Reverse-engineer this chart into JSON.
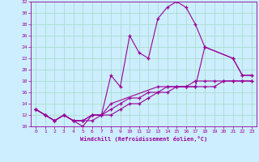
{
  "xlabel": "Windchill (Refroidissement éolien,°C)",
  "bg_color": "#cceeff",
  "line_color": "#990099",
  "grid_color": "#aaddcc",
  "xlim": [
    -0.5,
    23.5
  ],
  "ylim": [
    10,
    32
  ],
  "yticks": [
    10,
    12,
    14,
    16,
    18,
    20,
    22,
    24,
    26,
    28,
    30,
    32
  ],
  "xticks": [
    0,
    1,
    2,
    3,
    4,
    5,
    6,
    7,
    8,
    9,
    10,
    11,
    12,
    13,
    14,
    15,
    16,
    17,
    18,
    19,
    20,
    21,
    22,
    23
  ],
  "series": [
    {
      "x": [
        0,
        1,
        2,
        3,
        4,
        5,
        6,
        7,
        8,
        9,
        10,
        11,
        12,
        13,
        14,
        15,
        16,
        17,
        18,
        21,
        22,
        23
      ],
      "y": [
        13,
        12,
        11,
        12,
        11,
        10,
        12,
        12,
        19,
        17,
        26,
        23,
        22,
        29,
        31,
        32,
        31,
        28,
        24,
        22,
        19,
        19
      ]
    },
    {
      "x": [
        0,
        1,
        2,
        3,
        4,
        5,
        6,
        7,
        8,
        9,
        10,
        11,
        12,
        13,
        14,
        15,
        16,
        17,
        18,
        19,
        20,
        21,
        22,
        23
      ],
      "y": [
        13,
        12,
        11,
        12,
        11,
        11,
        12,
        12,
        13,
        14,
        15,
        15,
        16,
        16,
        17,
        17,
        17,
        18,
        18,
        18,
        18,
        18,
        18,
        18
      ]
    },
    {
      "x": [
        0,
        1,
        2,
        3,
        4,
        5,
        6,
        7,
        8,
        9,
        10,
        11,
        12,
        13,
        14,
        15,
        16,
        17,
        18,
        19,
        20,
        21,
        22,
        23
      ],
      "y": [
        13,
        12,
        11,
        12,
        11,
        11,
        11,
        12,
        12,
        13,
        14,
        14,
        15,
        16,
        16,
        17,
        17,
        17,
        17,
        17,
        18,
        18,
        18,
        18
      ]
    },
    {
      "x": [
        0,
        1,
        2,
        3,
        4,
        5,
        6,
        7,
        8,
        13,
        14,
        15,
        16,
        17,
        18,
        21,
        22,
        23
      ],
      "y": [
        13,
        12,
        11,
        12,
        11,
        11,
        12,
        12,
        14,
        17,
        17,
        17,
        17,
        17,
        24,
        22,
        19,
        19
      ]
    }
  ]
}
